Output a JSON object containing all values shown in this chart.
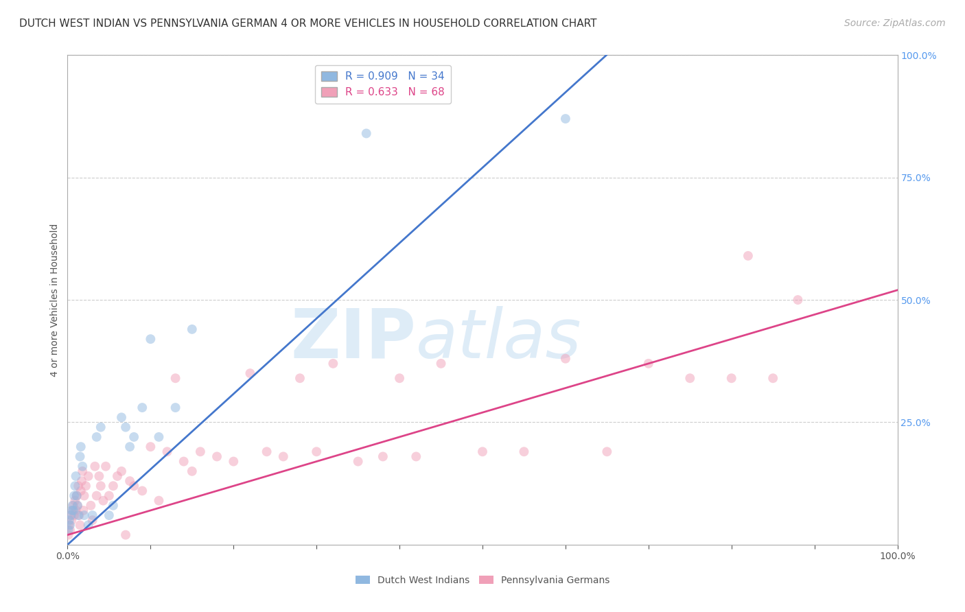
{
  "title": "DUTCH WEST INDIAN VS PENNSYLVANIA GERMAN 4 OR MORE VEHICLES IN HOUSEHOLD CORRELATION CHART",
  "source": "Source: ZipAtlas.com",
  "ylabel": "4 or more Vehicles in Household",
  "watermark_zip": "ZIP",
  "watermark_atlas": "atlas",
  "background_color": "#ffffff",
  "grid_color": "#cccccc",
  "blue_R": 0.909,
  "blue_N": 34,
  "pink_R": 0.633,
  "pink_N": 68,
  "blue_color": "#90b8e0",
  "pink_color": "#f0a0b8",
  "blue_line_color": "#4477cc",
  "pink_line_color": "#dd4488",
  "right_ytick_labels": [
    "100.0%",
    "75.0%",
    "50.0%",
    "25.0%"
  ],
  "right_ytick_values": [
    1.0,
    0.75,
    0.5,
    0.25
  ],
  "blue_line_x": [
    0.0,
    1.0
  ],
  "blue_line_y": [
    0.0,
    1.54
  ],
  "pink_line_x": [
    0.0,
    1.0
  ],
  "pink_line_y": [
    0.02,
    0.52
  ],
  "blue_points_x": [
    0.001,
    0.002,
    0.003,
    0.004,
    0.005,
    0.006,
    0.007,
    0.008,
    0.009,
    0.01,
    0.011,
    0.012,
    0.013,
    0.015,
    0.016,
    0.018,
    0.02,
    0.025,
    0.03,
    0.035,
    0.04,
    0.05,
    0.055,
    0.065,
    0.07,
    0.075,
    0.08,
    0.09,
    0.1,
    0.11,
    0.13,
    0.15,
    0.36,
    0.6
  ],
  "blue_points_y": [
    0.03,
    0.05,
    0.04,
    0.06,
    0.07,
    0.08,
    0.07,
    0.1,
    0.12,
    0.14,
    0.1,
    0.08,
    0.06,
    0.18,
    0.2,
    0.16,
    0.06,
    0.04,
    0.06,
    0.22,
    0.24,
    0.06,
    0.08,
    0.26,
    0.24,
    0.2,
    0.22,
    0.28,
    0.42,
    0.22,
    0.28,
    0.44,
    0.84,
    0.87
  ],
  "pink_points_x": [
    0.001,
    0.002,
    0.003,
    0.004,
    0.005,
    0.006,
    0.007,
    0.008,
    0.009,
    0.01,
    0.011,
    0.012,
    0.013,
    0.014,
    0.015,
    0.016,
    0.017,
    0.018,
    0.019,
    0.02,
    0.022,
    0.025,
    0.028,
    0.03,
    0.033,
    0.035,
    0.038,
    0.04,
    0.043,
    0.046,
    0.05,
    0.055,
    0.06,
    0.065,
    0.07,
    0.075,
    0.08,
    0.09,
    0.1,
    0.11,
    0.12,
    0.13,
    0.14,
    0.15,
    0.16,
    0.18,
    0.2,
    0.22,
    0.24,
    0.26,
    0.28,
    0.3,
    0.32,
    0.35,
    0.38,
    0.4,
    0.42,
    0.45,
    0.5,
    0.55,
    0.6,
    0.65,
    0.7,
    0.75,
    0.8,
    0.82,
    0.85,
    0.88
  ],
  "pink_points_y": [
    0.02,
    0.04,
    0.03,
    0.06,
    0.05,
    0.07,
    0.08,
    0.06,
    0.09,
    0.07,
    0.1,
    0.08,
    0.12,
    0.06,
    0.04,
    0.11,
    0.13,
    0.15,
    0.07,
    0.1,
    0.12,
    0.14,
    0.08,
    0.05,
    0.16,
    0.1,
    0.14,
    0.12,
    0.09,
    0.16,
    0.1,
    0.12,
    0.14,
    0.15,
    0.02,
    0.13,
    0.12,
    0.11,
    0.2,
    0.09,
    0.19,
    0.34,
    0.17,
    0.15,
    0.19,
    0.18,
    0.17,
    0.35,
    0.19,
    0.18,
    0.34,
    0.19,
    0.37,
    0.17,
    0.18,
    0.34,
    0.18,
    0.37,
    0.19,
    0.19,
    0.38,
    0.19,
    0.37,
    0.34,
    0.34,
    0.59,
    0.34,
    0.5
  ],
  "xlim": [
    0.0,
    1.0
  ],
  "ylim": [
    0.0,
    1.0
  ],
  "title_fontsize": 11,
  "label_fontsize": 10,
  "tick_fontsize": 10,
  "legend_fontsize": 11,
  "source_fontsize": 10,
  "marker_size": 100,
  "marker_alpha": 0.5,
  "line_width": 2.0
}
